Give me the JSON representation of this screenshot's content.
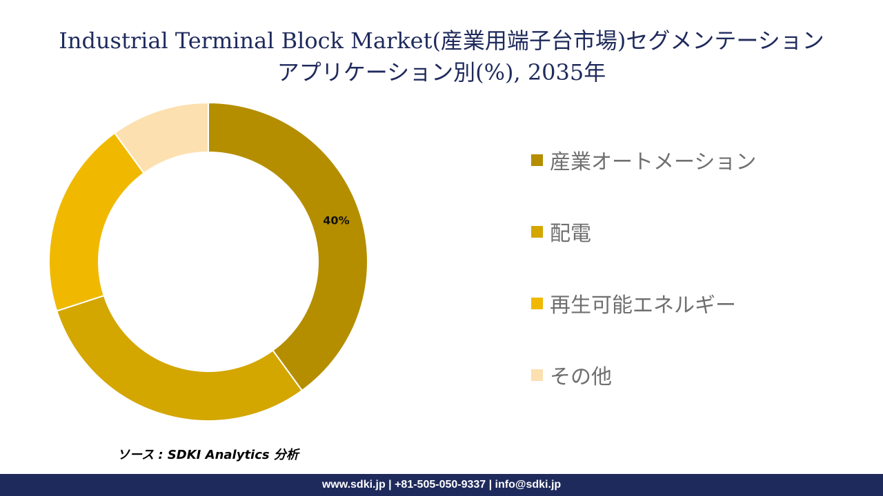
{
  "title": {
    "line1": "Industrial Terminal Block Market(産業用端子台市場)セグメンテーション",
    "line2": "アプリケーション別(%), 2035年"
  },
  "chart_data": {
    "type": "pie",
    "variant": "donut",
    "title": "Industrial Terminal Block Market(産業用端子台市場)セグメンテーション アプリケーション別(%), 2035年",
    "categories": [
      "産業オートメーション",
      "配電",
      "再生可能エネルギー",
      "その他"
    ],
    "values": [
      40,
      30,
      20,
      10
    ],
    "data_labels": [
      "40%",
      "",
      "",
      ""
    ],
    "colors": [
      "#b58e00",
      "#d4a600",
      "#f0b900",
      "#fce0b0"
    ],
    "legend_position": "right"
  },
  "source": "ソース : SDKI Analytics 分析",
  "footer": "www.sdki.jp | +81-505-050-9337 | info@sdki.jp"
}
